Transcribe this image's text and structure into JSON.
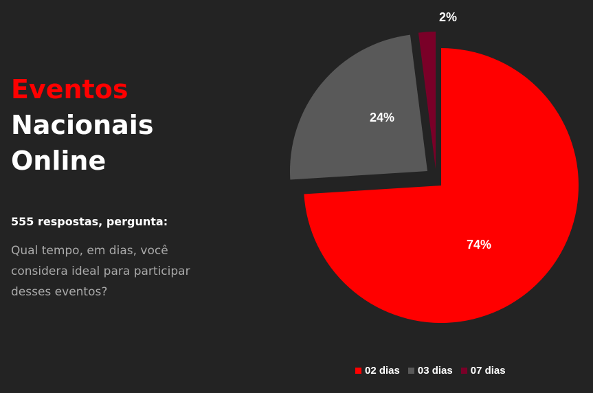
{
  "title": {
    "line1": "Eventos",
    "line2": "Nacionais",
    "line3": "Online"
  },
  "subhead": "555 respostas, pergunta:",
  "question": "Qual tempo, em dias, você considera ideal para participar desses eventos?",
  "colors": {
    "accent": "#ff0000",
    "background": "#232323",
    "slice_03": "#595959",
    "slice_07": "#7a0028"
  },
  "chart_data": {
    "type": "pie",
    "title": "",
    "slices": [
      {
        "label": "02 dias",
        "value": 74,
        "display": "74%",
        "color": "#ff0000"
      },
      {
        "label": "03 dias",
        "value": 24,
        "display": "24%",
        "color": "#595959"
      },
      {
        "label": "07 dias",
        "value": 2,
        "display": "2%",
        "color": "#7a0028"
      }
    ],
    "legend": "bottom"
  }
}
